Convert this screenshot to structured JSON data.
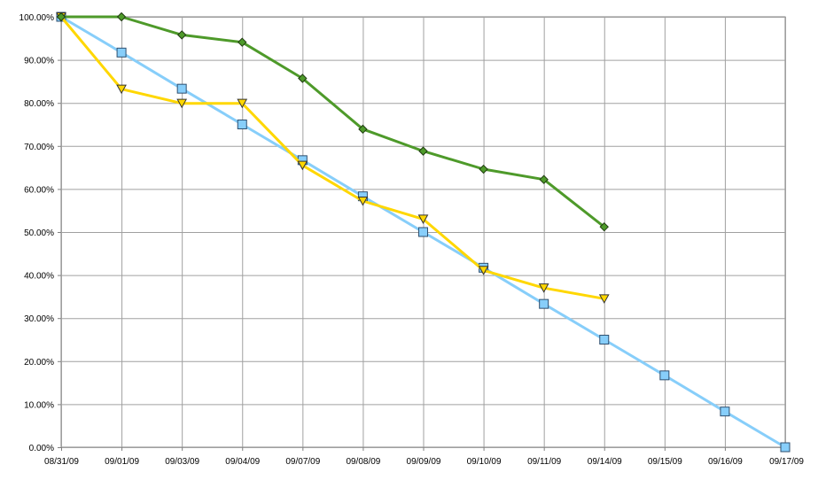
{
  "chart_data": {
    "type": "line",
    "title": "",
    "xlabel": "",
    "ylabel": "",
    "categories": [
      "08/31/09",
      "09/01/09",
      "09/03/09",
      "09/04/09",
      "09/07/09",
      "09/08/09",
      "09/09/09",
      "09/10/09",
      "09/11/09",
      "09/14/09",
      "09/15/09",
      "09/16/09",
      "09/17/09"
    ],
    "ylim": [
      0,
      100
    ],
    "ytick_labels": [
      "0.00%",
      "10.00%",
      "20.00%",
      "30.00%",
      "40.00%",
      "50.00%",
      "60.00%",
      "70.00%",
      "80.00%",
      "90.00%",
      "100.00%"
    ],
    "grid": true,
    "legend": "none",
    "series": [
      {
        "color": "#87cefa",
        "marker": "square",
        "values": [
          100,
          91.7,
          83.3,
          75.0,
          66.7,
          58.3,
          50.0,
          41.7,
          33.3,
          25.0,
          16.7,
          8.3,
          0
        ]
      },
      {
        "color": "#ffd700",
        "marker": "triangle-down",
        "values": [
          100,
          83.2,
          79.9,
          79.9,
          65.5,
          57.2,
          53.0,
          41.1,
          37.0,
          34.5,
          null,
          null,
          null
        ]
      },
      {
        "color": "#4e9a2a",
        "marker": "diamond",
        "values": [
          100,
          100,
          95.8,
          94.1,
          85.7,
          73.9,
          68.8,
          64.6,
          62.2,
          51.2,
          null,
          null,
          null
        ]
      }
    ]
  }
}
